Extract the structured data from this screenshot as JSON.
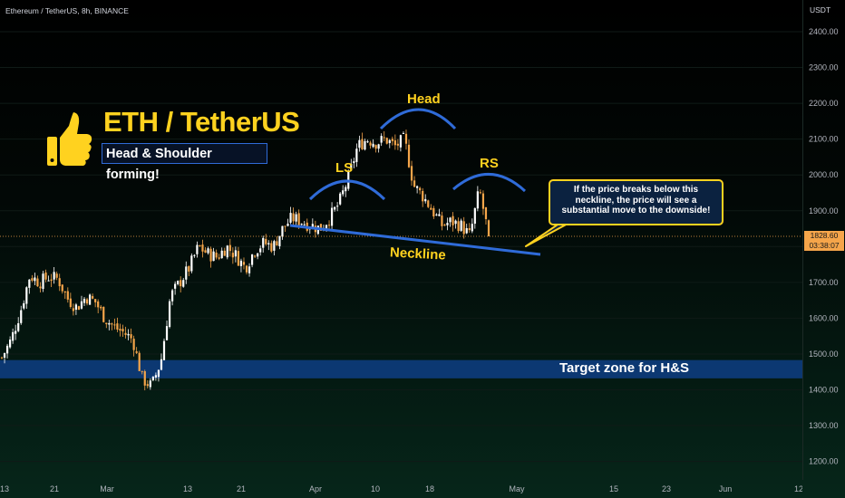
{
  "header": {
    "symbol_line": "Ethereum / TetherUS, 8h, BINANCE",
    "unit": "USDT"
  },
  "price_tag": {
    "price": "1828.60",
    "countdown": "03:38:07"
  },
  "overlay": {
    "title": "ETH / TetherUS",
    "subtitle": "Head & Shoulder forming!",
    "callout": "If the price breaks below this neckline, the price will see a substantial move to the downside!",
    "zone_label": "Target zone for H&S",
    "labels": {
      "head": "Head",
      "left_shoulder": "LS",
      "right_shoulder": "RS",
      "neckline": "Neckline"
    }
  },
  "colors": {
    "bull": "#ffffff",
    "bear": "#f5a54a",
    "annotation": "#ffd21f",
    "neckline": "#2f6bd8",
    "zone": "#0d3a78"
  },
  "chart_data": {
    "type": "candlestick",
    "title": "Ethereum / TetherUS, 8h, BINANCE",
    "ylabel": "USDT",
    "ylim": [
      1150,
      2490
    ],
    "y_ticks": [
      1200,
      1300,
      1400,
      1500,
      1600,
      1700,
      1800,
      1900,
      2000,
      2100,
      2200,
      2300,
      2400
    ],
    "x_tick_labels": [
      "13",
      "21",
      "Mar",
      "13",
      "21",
      "Apr",
      "10",
      "18",
      "May",
      "15",
      "23",
      "Jun",
      "12"
    ],
    "last_price": 1828.6,
    "target_zone": [
      1432,
      1483
    ],
    "close_path": [
      {
        "date": "Feb 10",
        "close": 1490
      },
      {
        "date": "Feb 11",
        "close": 1540
      },
      {
        "date": "Feb 13",
        "close": 1620
      },
      {
        "date": "Feb 15",
        "close": 1720
      },
      {
        "date": "Feb 17",
        "close": 1700
      },
      {
        "date": "Feb 19",
        "close": 1715
      },
      {
        "date": "Feb 21",
        "close": 1710
      },
      {
        "date": "Feb 23",
        "close": 1655
      },
      {
        "date": "Feb 25",
        "close": 1630
      },
      {
        "date": "Feb 27",
        "close": 1660
      },
      {
        "date": "Mar 1",
        "close": 1645
      },
      {
        "date": "Mar 3",
        "close": 1600
      },
      {
        "date": "Mar 5",
        "close": 1575
      },
      {
        "date": "Mar 7",
        "close": 1560
      },
      {
        "date": "Mar 9",
        "close": 1540
      },
      {
        "date": "Mar 10",
        "close": 1430
      },
      {
        "date": "Mar 11",
        "close": 1410
      },
      {
        "date": "Mar 12",
        "close": 1480
      },
      {
        "date": "Mar 13",
        "close": 1660
      },
      {
        "date": "Mar 14",
        "close": 1700
      },
      {
        "date": "Mar 16",
        "close": 1740
      },
      {
        "date": "Mar 18",
        "close": 1800
      },
      {
        "date": "Mar 20",
        "close": 1780
      },
      {
        "date": "Mar 22",
        "close": 1770
      },
      {
        "date": "Mar 24",
        "close": 1800
      },
      {
        "date": "Mar 26",
        "close": 1775
      },
      {
        "date": "Mar 27",
        "close": 1740
      },
      {
        "date": "Mar 29",
        "close": 1790
      },
      {
        "date": "Mar 31",
        "close": 1810
      },
      {
        "date": "Apr 2",
        "close": 1800
      },
      {
        "date": "Apr 3",
        "close": 1850
      },
      {
        "date": "Apr 4",
        "close": 1880
      },
      {
        "date": "Apr 6",
        "close": 1870
      },
      {
        "date": "Apr 8",
        "close": 1860
      },
      {
        "date": "Apr 9",
        "close": 1850
      },
      {
        "date": "Apr 10",
        "close": 1880
      },
      {
        "date": "Apr 11",
        "close": 1920
      },
      {
        "date": "Apr 12",
        "close": 1990
      },
      {
        "date": "Apr 13",
        "close": 2080
      },
      {
        "date": "Apr 14",
        "close": 2100
      },
      {
        "date": "Apr 15",
        "close": 2090
      },
      {
        "date": "Apr 16",
        "close": 2100
      },
      {
        "date": "Apr 17",
        "close": 2080
      },
      {
        "date": "Apr 18",
        "close": 2100
      },
      {
        "date": "Apr 19",
        "close": 1970
      },
      {
        "date": "Apr 20",
        "close": 1940
      },
      {
        "date": "Apr 21",
        "close": 1900
      },
      {
        "date": "Apr 22",
        "close": 1860
      },
      {
        "date": "Apr 23",
        "close": 1870
      },
      {
        "date": "Apr 24",
        "close": 1860
      },
      {
        "date": "Apr 25",
        "close": 1830
      },
      {
        "date": "Apr 26",
        "close": 1960
      },
      {
        "date": "Apr 27",
        "close": 1828.6
      }
    ]
  }
}
